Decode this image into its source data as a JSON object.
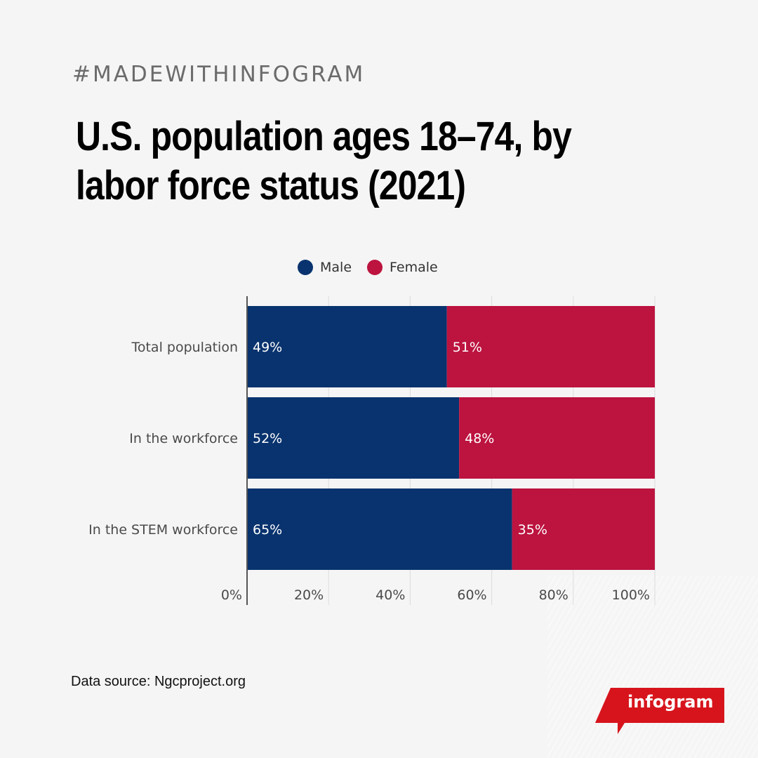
{
  "header": {
    "hashtag": "#MADEWITHINFOGRAM",
    "title": "U.S. population ages 18–74, by labor force status (2021)"
  },
  "legend": [
    {
      "label": "Male",
      "color": "#08336e"
    },
    {
      "label": "Female",
      "color": "#bc133f"
    }
  ],
  "chart_data": {
    "type": "bar",
    "orientation": "horizontal",
    "stacked": true,
    "title": "U.S. population ages 18–74, by labor force status (2021)",
    "categories": [
      "Total population",
      "In the workforce",
      "In the STEM workforce"
    ],
    "series": [
      {
        "name": "Male",
        "color": "#08336e",
        "values": [
          49,
          52,
          65
        ],
        "labels": [
          "49%",
          "52%",
          "65%"
        ]
      },
      {
        "name": "Female",
        "color": "#bc133f",
        "values": [
          51,
          48,
          35
        ],
        "labels": [
          "51%",
          "48%",
          "35%"
        ]
      }
    ],
    "xlim": [
      0,
      100
    ],
    "xticks": [
      "0%",
      "20%",
      "40%",
      "60%",
      "80%",
      "100%"
    ],
    "xlabel": "",
    "ylabel": "",
    "grid": true,
    "legend_position": "top"
  },
  "footer": {
    "source": "Data source: Ngcproject.org",
    "logo": "infogram"
  }
}
